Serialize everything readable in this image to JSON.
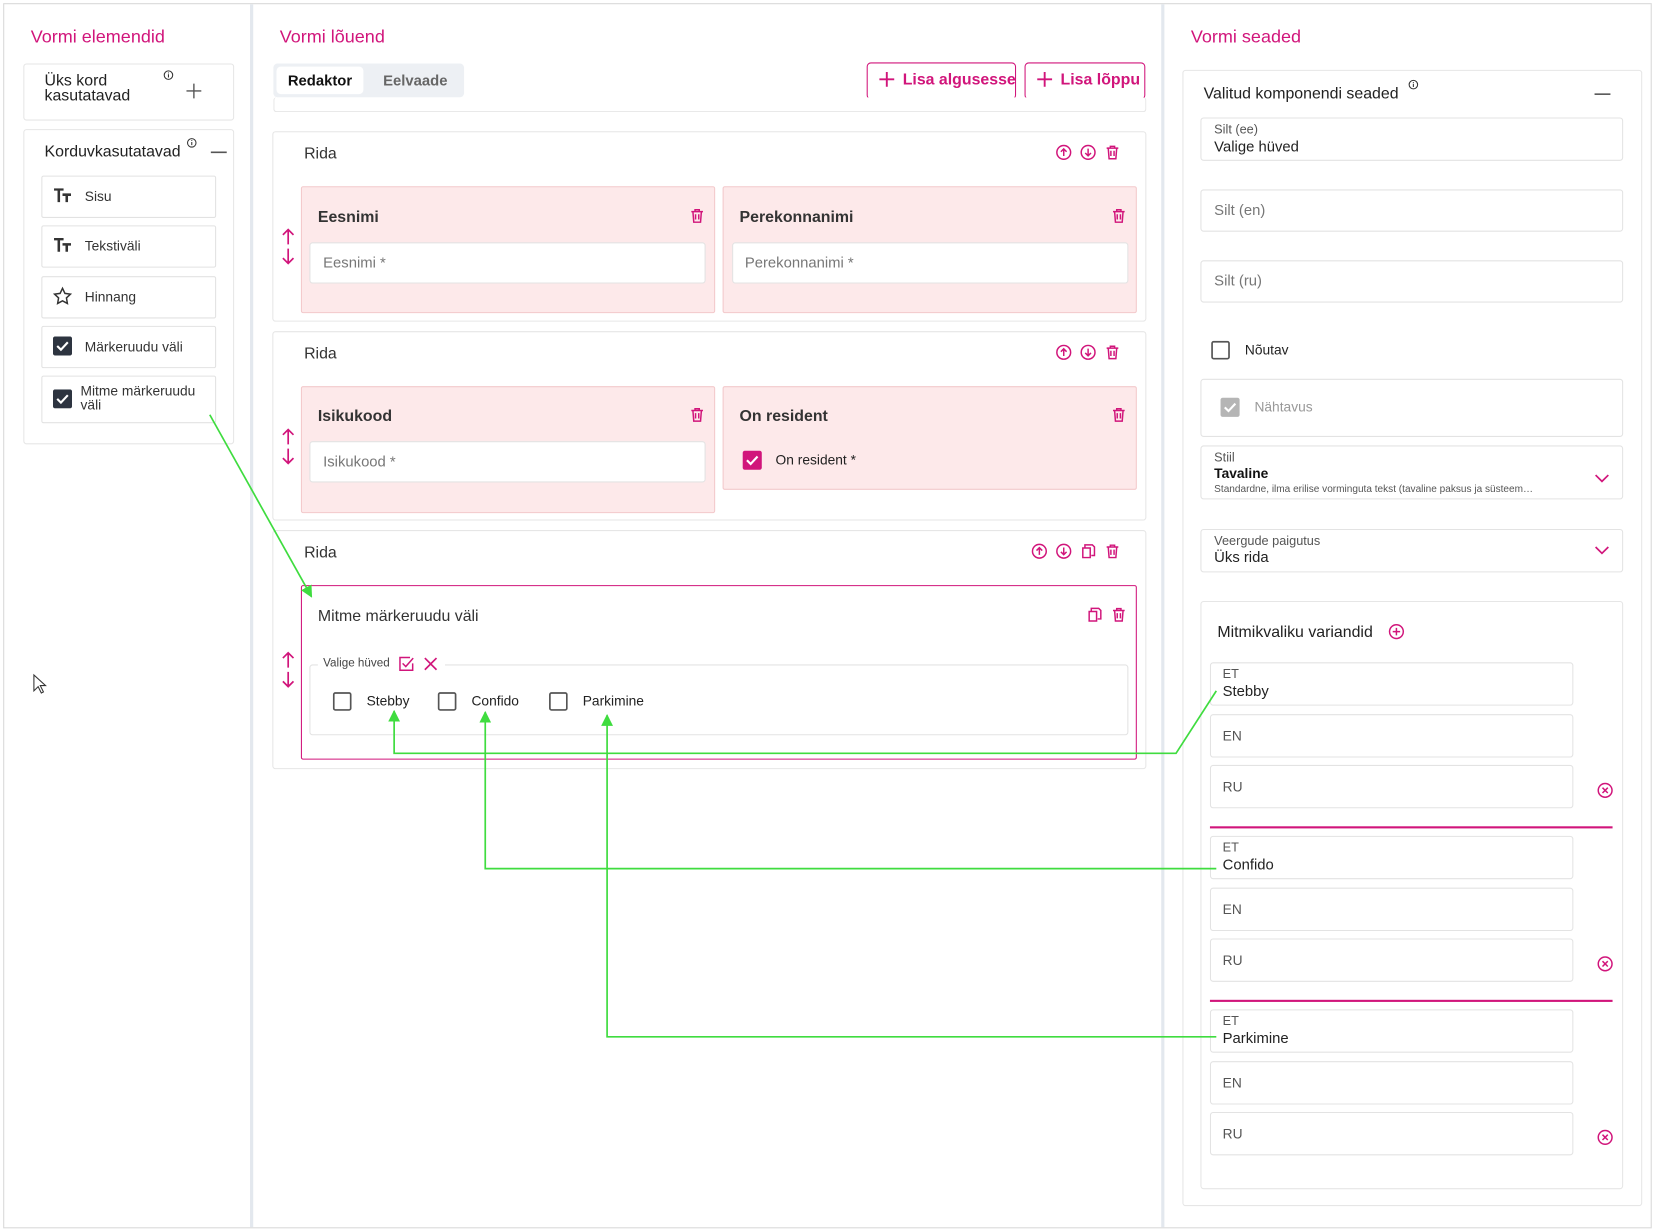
{
  "left": {
    "title": "Vormi elemendid",
    "once": {
      "label": "Üks kord kasutatavad"
    },
    "reusable": {
      "label": "Korduvkasutatavad",
      "items": [
        "Sisu",
        "Tekstiväli",
        "Hinnang",
        "Märkeruudu väli",
        "Mitme märkeruudu väli"
      ]
    }
  },
  "canvas": {
    "title": "Vormi lõuend",
    "tabs": [
      "Redaktor",
      "Eelvaade"
    ],
    "buttons": [
      "Lisa algusesse",
      "Lisa lõppu"
    ],
    "rows": [
      {
        "label": "Rida",
        "fields": [
          {
            "title": "Eesnimi",
            "placeholder": "Eesnimi *"
          },
          {
            "title": "Perekonnanimi",
            "placeholder": "Perekonnanimi *"
          }
        ]
      },
      {
        "label": "Rida",
        "fields": [
          {
            "title": "Isikukood",
            "placeholder": "Isikukood *"
          },
          {
            "title": "On resident",
            "checkbox": "On resident *"
          }
        ]
      },
      {
        "label": "Rida",
        "fields": [
          {
            "title": "Mitme märkeruudu väli",
            "legend": "Valige hüved",
            "options": [
              "Stebby",
              "Confido",
              "Parkimine"
            ]
          }
        ]
      }
    ]
  },
  "settings": {
    "title": "Vormi seaded",
    "section": "Valitud komponendi seaded",
    "label_ee": {
      "label": "Silt (ee)",
      "value": "Valige hüved"
    },
    "label_en": "Silt (en)",
    "label_ru": "Silt (ru)",
    "required": "Nõutav",
    "visibility": "Nähtavus",
    "style": {
      "label": "Stiil",
      "value": "Tavaline",
      "description": "Standardne, ilma erilise vorminguta tekst (tavaline paksus ja süsteem…"
    },
    "columns": {
      "label": "Veergude paigutus",
      "value": "Üks rida"
    },
    "variants": {
      "title": "Mitmikvaliku variandid",
      "items": [
        {
          "et_label": "ET",
          "et": "Stebby",
          "en": "EN",
          "ru": "RU"
        },
        {
          "et_label": "ET",
          "et": "Confido",
          "en": "EN",
          "ru": "RU"
        },
        {
          "et_label": "ET",
          "et": "Parkimine",
          "en": "EN",
          "ru": "RU"
        }
      ]
    }
  }
}
